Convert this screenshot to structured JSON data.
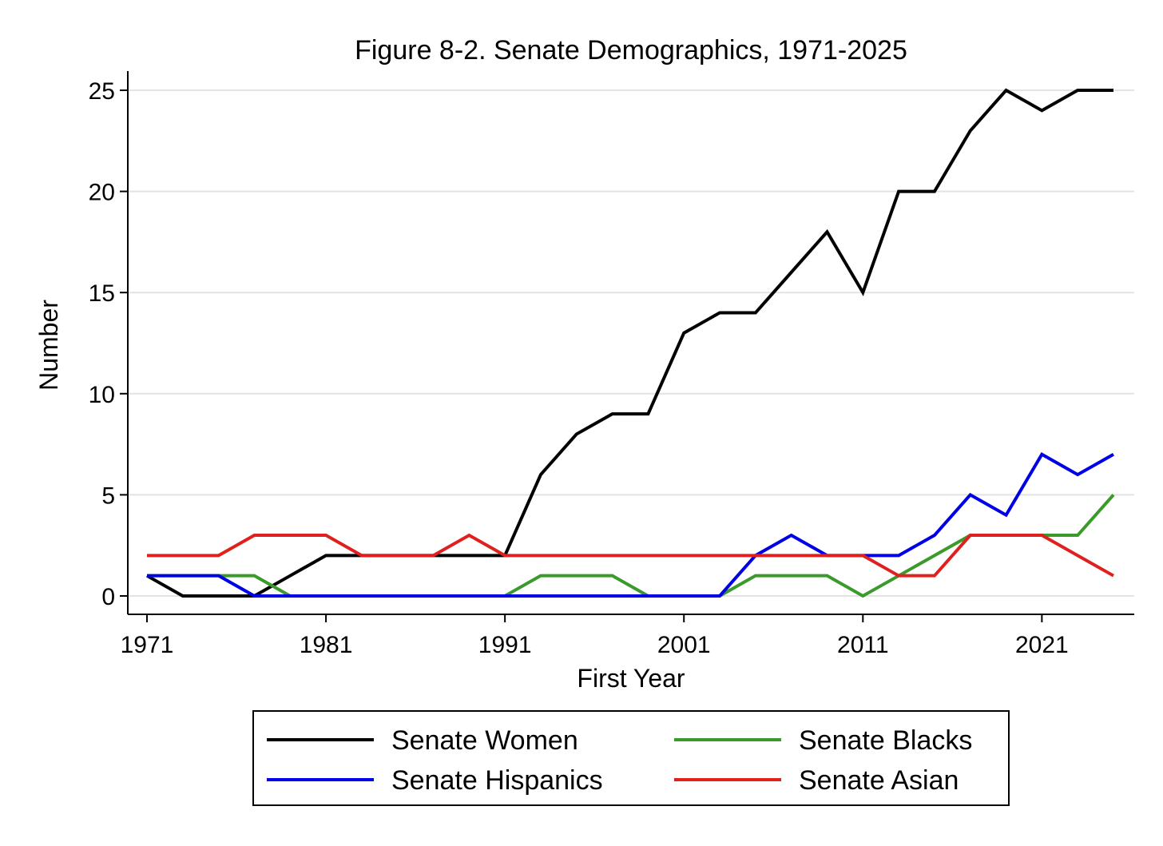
{
  "chart_data": {
    "type": "line",
    "title": "Figure 8-2. Senate Demographics, 1971-2025",
    "xlabel": "First Year",
    "ylabel": "Number",
    "xlim": [
      1971,
      2025
    ],
    "ylim": [
      0,
      25
    ],
    "xticks": [
      1971,
      1981,
      1991,
      2001,
      2011,
      2021
    ],
    "yticks": [
      0,
      5,
      10,
      15,
      20,
      25
    ],
    "grid": true,
    "legend_position": "bottom",
    "x": [
      1971,
      1973,
      1975,
      1977,
      1979,
      1981,
      1983,
      1985,
      1987,
      1989,
      1991,
      1993,
      1995,
      1997,
      1999,
      2001,
      2003,
      2005,
      2007,
      2009,
      2011,
      2013,
      2015,
      2017,
      2019,
      2021,
      2023,
      2025
    ],
    "series": [
      {
        "name": "Senate Women",
        "color": "#000000",
        "values": [
          1,
          0,
          0,
          0,
          1,
          2,
          2,
          2,
          2,
          2,
          2,
          6,
          8,
          9,
          9,
          13,
          14,
          14,
          16,
          18,
          15,
          20,
          20,
          23,
          25,
          24,
          25,
          25
        ]
      },
      {
        "name": "Senate Blacks",
        "color": "#3a9a2a",
        "values": [
          1,
          1,
          1,
          1,
          0,
          0,
          0,
          0,
          0,
          0,
          0,
          1,
          1,
          1,
          0,
          0,
          0,
          1,
          1,
          1,
          0,
          1,
          2,
          3,
          3,
          3,
          3,
          5
        ]
      },
      {
        "name": "Senate Hispanics",
        "color": "#0000e6",
        "values": [
          1,
          1,
          1,
          0,
          0,
          0,
          0,
          0,
          0,
          0,
          0,
          0,
          0,
          0,
          0,
          0,
          0,
          2,
          3,
          2,
          2,
          2,
          3,
          5,
          4,
          7,
          6,
          7
        ]
      },
      {
        "name": "Senate Asian",
        "color": "#e0201e",
        "values": [
          2,
          2,
          2,
          3,
          3,
          3,
          2,
          2,
          2,
          3,
          2,
          2,
          2,
          2,
          2,
          2,
          2,
          2,
          2,
          2,
          2,
          1,
          1,
          3,
          3,
          3,
          2,
          1
        ]
      }
    ]
  }
}
